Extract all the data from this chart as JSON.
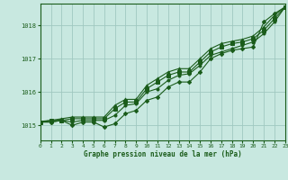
{
  "xlabel": "Graphe pression niveau de la mer (hPa)",
  "background_color": "#c8e8e0",
  "grid_color": "#a0c8c0",
  "line_color": "#1a5c1a",
  "xlim": [
    0,
    23
  ],
  "ylim": [
    1014.55,
    1018.65
  ],
  "yticks": [
    1015,
    1016,
    1017,
    1018
  ],
  "xtick_labels": [
    "0",
    "1",
    "2",
    "3",
    "4",
    "5",
    "6",
    "7",
    "8",
    "9",
    "10",
    "11",
    "12",
    "13",
    "14",
    "15",
    "16",
    "17",
    "18",
    "19",
    "20",
    "21",
    "22",
    "23"
  ],
  "series": [
    [
      1015.1,
      1015.1,
      1015.15,
      1015.0,
      1015.1,
      1015.1,
      1014.95,
      1015.05,
      1015.35,
      1015.45,
      1015.75,
      1015.85,
      1016.15,
      1016.3,
      1016.3,
      1016.6,
      1017.0,
      1017.15,
      1017.25,
      1017.3,
      1017.35,
      1018.1,
      1018.35,
      1018.55
    ],
    [
      1015.1,
      1015.1,
      1015.15,
      1015.1,
      1015.15,
      1015.15,
      1015.15,
      1015.3,
      1015.6,
      1015.65,
      1016.0,
      1016.1,
      1016.35,
      1016.5,
      1016.55,
      1016.8,
      1017.1,
      1017.2,
      1017.3,
      1017.4,
      1017.5,
      1017.75,
      1018.1,
      1018.55
    ],
    [
      1015.1,
      1015.15,
      1015.15,
      1015.2,
      1015.2,
      1015.2,
      1015.2,
      1015.5,
      1015.7,
      1015.7,
      1016.1,
      1016.3,
      1016.5,
      1016.6,
      1016.6,
      1016.9,
      1017.2,
      1017.35,
      1017.45,
      1017.5,
      1017.6,
      1017.85,
      1018.2,
      1018.55
    ],
    [
      1015.12,
      1015.15,
      1015.2,
      1015.25,
      1015.25,
      1015.25,
      1015.25,
      1015.6,
      1015.78,
      1015.78,
      1016.2,
      1016.4,
      1016.6,
      1016.7,
      1016.7,
      1017.0,
      1017.3,
      1017.45,
      1017.52,
      1017.58,
      1017.68,
      1017.95,
      1018.3,
      1018.55
    ]
  ],
  "markers": [
    "D",
    "o",
    "s",
    "^"
  ]
}
